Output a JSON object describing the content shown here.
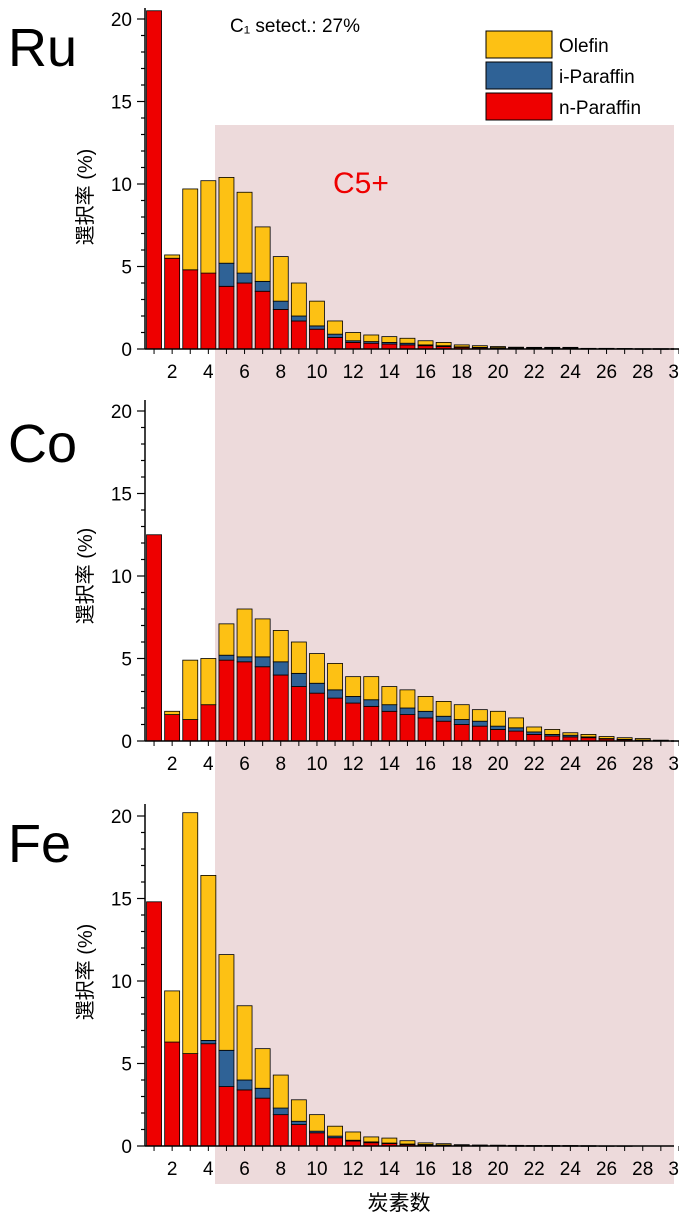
{
  "colors": {
    "olefin": "#FDC114",
    "i_paraffin": "#2F6296",
    "n_paraffin": "#EE0000",
    "c5_region": "#EDDADB",
    "c5_label": "#EE0000"
  },
  "xlabel": "炭素数",
  "ylabel": "選択率 (%)",
  "c5_label": "C5+",
  "legend": [
    "Olefin",
    "i-Paraffin",
    "n-Paraffin"
  ],
  "x_ticks": [
    "2",
    "4",
    "6",
    "8",
    "10",
    "12",
    "14",
    "16",
    "18",
    "20",
    "22",
    "24",
    "26",
    "28",
    "30"
  ],
  "chart_data": [
    {
      "type": "bar",
      "stacked": true,
      "title": "Ru",
      "annotation": "C₁ setect.: 27%",
      "ylim": [
        0,
        20
      ],
      "y_ticks": [
        0,
        5,
        10,
        15,
        20
      ],
      "x": [
        1,
        2,
        3,
        4,
        5,
        6,
        7,
        8,
        9,
        10,
        11,
        12,
        13,
        14,
        15,
        16,
        17,
        18,
        19,
        20,
        21,
        22,
        23,
        24,
        25,
        26,
        27,
        28,
        29,
        30
      ],
      "series": [
        {
          "name": "n-Paraffin",
          "values": [
            20.5,
            5.5,
            4.8,
            4.6,
            3.8,
            4.0,
            3.5,
            2.4,
            1.7,
            1.2,
            0.7,
            0.4,
            0.35,
            0.3,
            0.25,
            0.2,
            0.15,
            0.1,
            0.08,
            0.06,
            0.05,
            0.05,
            0.05,
            0.05,
            0.02,
            0.02,
            0.02,
            0.01,
            0.01,
            0.01
          ]
        },
        {
          "name": "i-Paraffin",
          "values": [
            0,
            0,
            0,
            0,
            1.4,
            0.6,
            0.6,
            0.5,
            0.3,
            0.2,
            0.2,
            0.1,
            0.1,
            0.1,
            0.1,
            0.05,
            0.05,
            0.03,
            0.02,
            0.02,
            0.01,
            0.01,
            0.01,
            0.01,
            0,
            0,
            0,
            0,
            0,
            0
          ]
        },
        {
          "name": "Olefin",
          "values": [
            0,
            0.2,
            4.9,
            5.6,
            5.2,
            4.9,
            3.3,
            2.7,
            2.0,
            1.5,
            0.8,
            0.5,
            0.4,
            0.35,
            0.3,
            0.25,
            0.2,
            0.12,
            0.1,
            0.07,
            0.05,
            0.04,
            0.04,
            0.04,
            0.02,
            0.02,
            0.01,
            0.01,
            0.01,
            0.01
          ]
        }
      ]
    },
    {
      "type": "bar",
      "stacked": true,
      "title": "Co",
      "ylim": [
        0,
        20
      ],
      "y_ticks": [
        0,
        5,
        10,
        15,
        20
      ],
      "x": [
        1,
        2,
        3,
        4,
        5,
        6,
        7,
        8,
        9,
        10,
        11,
        12,
        13,
        14,
        15,
        16,
        17,
        18,
        19,
        20,
        21,
        22,
        23,
        24,
        25,
        26,
        27,
        28,
        29,
        30
      ],
      "series": [
        {
          "name": "n-Paraffin",
          "values": [
            12.5,
            1.6,
            1.3,
            2.2,
            4.9,
            4.8,
            4.5,
            4.0,
            3.3,
            2.9,
            2.6,
            2.3,
            2.1,
            1.8,
            1.6,
            1.4,
            1.2,
            1.0,
            0.9,
            0.7,
            0.6,
            0.4,
            0.3,
            0.25,
            0.2,
            0.12,
            0.08,
            0.05,
            0.02,
            0.01
          ]
        },
        {
          "name": "i-Paraffin",
          "values": [
            0,
            0,
            0,
            0,
            0.3,
            0.3,
            0.6,
            0.8,
            0.8,
            0.6,
            0.5,
            0.4,
            0.4,
            0.4,
            0.4,
            0.4,
            0.3,
            0.3,
            0.3,
            0.2,
            0.2,
            0.15,
            0.1,
            0.1,
            0.05,
            0.03,
            0.02,
            0.01,
            0,
            0
          ]
        },
        {
          "name": "Olefin",
          "values": [
            0,
            0.2,
            3.6,
            2.8,
            1.9,
            2.9,
            2.3,
            1.9,
            1.9,
            1.8,
            1.6,
            1.2,
            1.4,
            1.1,
            1.1,
            0.9,
            0.9,
            0.9,
            0.7,
            0.9,
            0.6,
            0.3,
            0.3,
            0.15,
            0.15,
            0.12,
            0.1,
            0.09,
            0.03,
            0.01
          ]
        }
      ]
    },
    {
      "type": "bar",
      "stacked": true,
      "title": "Fe",
      "ylim": [
        0,
        20
      ],
      "y_ticks": [
        0,
        5,
        10,
        15,
        20
      ],
      "x": [
        1,
        2,
        3,
        4,
        5,
        6,
        7,
        8,
        9,
        10,
        11,
        12,
        13,
        14,
        15,
        16,
        17,
        18,
        19,
        20,
        21,
        22,
        23,
        24,
        25,
        26,
        27,
        28,
        29,
        30
      ],
      "series": [
        {
          "name": "n-Paraffin",
          "values": [
            14.8,
            6.3,
            5.6,
            6.2,
            3.6,
            3.4,
            2.9,
            1.9,
            1.3,
            0.8,
            0.5,
            0.3,
            0.2,
            0.15,
            0.1,
            0.07,
            0.05,
            0.03,
            0.02,
            0.02,
            0.01,
            0.01,
            0.01,
            0.01,
            0.01,
            0,
            0,
            0,
            0,
            0
          ]
        },
        {
          "name": "i-Paraffin",
          "values": [
            0,
            0,
            0,
            0.2,
            2.2,
            0.6,
            0.6,
            0.4,
            0.2,
            0.1,
            0.1,
            0.05,
            0.05,
            0.03,
            0.02,
            0.02,
            0.01,
            0,
            0,
            0,
            0,
            0,
            0,
            0,
            0,
            0,
            0,
            0,
            0,
            0
          ]
        },
        {
          "name": "Olefin",
          "values": [
            0,
            3.1,
            14.6,
            10.0,
            5.8,
            4.5,
            2.4,
            2.0,
            1.3,
            1.0,
            0.6,
            0.5,
            0.3,
            0.3,
            0.2,
            0.1,
            0.08,
            0.05,
            0.04,
            0.03,
            0.03,
            0.02,
            0.02,
            0.02,
            0.01,
            0.01,
            0.01,
            0,
            0,
            0
          ]
        }
      ]
    }
  ]
}
